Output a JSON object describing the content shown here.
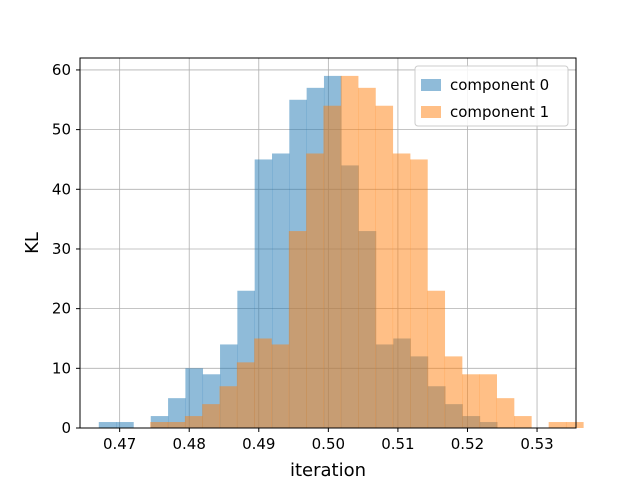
{
  "chart_data": {
    "type": "histogram",
    "title": "",
    "xlabel": "iteration",
    "ylabel": "KL",
    "xlim": [
      0.4643,
      0.5356
    ],
    "ylim": [
      0,
      62
    ],
    "x_ticks": [
      0.47,
      0.48,
      0.49,
      0.5,
      0.51,
      0.52,
      0.53
    ],
    "x_tick_labels": [
      "0.47",
      "0.48",
      "0.49",
      "0.50",
      "0.51",
      "0.52",
      "0.53"
    ],
    "y_ticks": [
      0,
      10,
      20,
      30,
      40,
      50,
      60
    ],
    "y_tick_labels": [
      "0",
      "10",
      "20",
      "30",
      "40",
      "50",
      "60"
    ],
    "grid": true,
    "legend_position": "upper-right",
    "bin_width": 0.00249,
    "series": [
      {
        "name": "component 0",
        "color": "#1f77b4",
        "alpha": 0.5,
        "bin_start": 0.467,
        "counts": [
          1,
          1,
          0,
          2,
          5,
          10,
          9,
          14,
          23,
          45,
          46,
          55,
          57,
          59,
          44,
          33,
          14,
          15,
          12,
          7,
          4,
          2,
          1
        ]
      },
      {
        "name": "component 1",
        "color": "#ff7f0e",
        "alpha": 0.5,
        "bin_start": 0.4744,
        "counts": [
          1,
          1,
          2,
          4,
          7,
          11,
          15,
          14,
          33,
          46,
          54,
          59,
          57,
          54,
          46,
          45,
          23,
          12,
          9,
          9,
          5,
          2,
          0,
          1,
          1
        ]
      }
    ]
  }
}
